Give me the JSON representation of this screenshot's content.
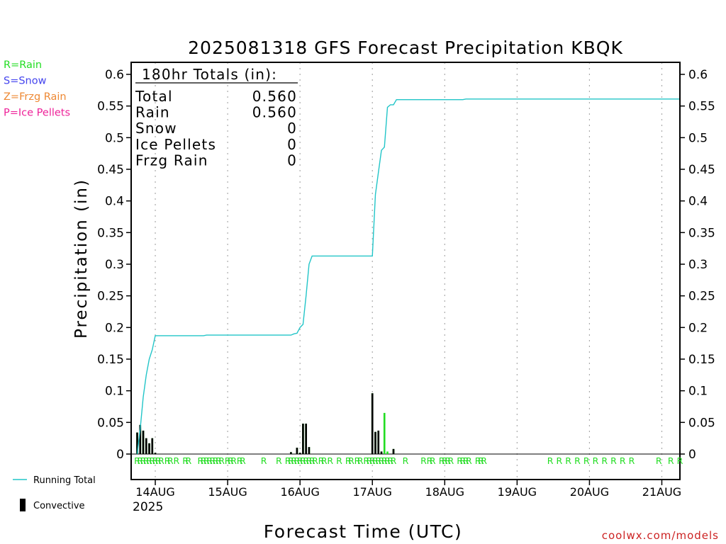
{
  "title": "2025081318 GFS Forecast Precipitation KBQK",
  "legend_ptype": [
    {
      "text": "R=Rain",
      "color": "#22dd22"
    },
    {
      "text": "S=Snow",
      "color": "#4444ee"
    },
    {
      "text": "Z=Frzg Rain",
      "color": "#ee8833"
    },
    {
      "text": "P=Ice Pellets",
      "color": "#ee2299"
    }
  ],
  "legend_lines": {
    "running_total": "Running Total",
    "convective": "Convective"
  },
  "totals_box": {
    "header": "180hr Totals (in):",
    "rows": [
      {
        "label": "Total",
        "value": "0.560"
      },
      {
        "label": "Rain",
        "value": "0.560"
      },
      {
        "label": "Snow",
        "value": "0"
      },
      {
        "label": "Ice Pellets",
        "value": "0"
      },
      {
        "label": "Frzg Rain",
        "value": "0"
      }
    ]
  },
  "credit": "coolwx.com/models",
  "colors": {
    "running_total": "#22c5c8",
    "convective": "#000000",
    "rain": "#22dd22",
    "credit": "#cc2222",
    "grid": "#aaaaaa"
  },
  "chart_data": {
    "type": "bar",
    "title": "2025081318 GFS Forecast Precipitation KBQK",
    "xlabel": "Forecast Time (UTC)",
    "ylabel": "Precipitation (in)",
    "ylim": [
      0,
      0.6
    ],
    "y_ticks": [
      "0",
      "0.05",
      "0.1",
      "0.15",
      "0.2",
      "0.25",
      "0.3",
      "0.35",
      "0.4",
      "0.45",
      "0.5",
      "0.55",
      "0.6"
    ],
    "x_unit": "forecast hour",
    "xlim": [
      -2,
      180
    ],
    "x_ticks": [
      {
        "hour": 6,
        "label": "14AUG"
      },
      {
        "hour": 30,
        "label": "15AUG"
      },
      {
        "hour": 54,
        "label": "16AUG"
      },
      {
        "hour": 78,
        "label": "17AUG"
      },
      {
        "hour": 102,
        "label": "18AUG"
      },
      {
        "hour": 126,
        "label": "19AUG"
      },
      {
        "hour": 150,
        "label": "20AUG"
      },
      {
        "hour": 174,
        "label": "21AUG"
      }
    ],
    "year_label": "2025",
    "bars": [
      {
        "hour": 0,
        "total": 0.034,
        "conv": 0.034
      },
      {
        "hour": 1,
        "total": 0.046,
        "conv": 0.046
      },
      {
        "hour": 2,
        "total": 0.037,
        "conv": 0.037
      },
      {
        "hour": 3,
        "total": 0.025,
        "conv": 0.025
      },
      {
        "hour": 4,
        "total": 0.017,
        "conv": 0.017
      },
      {
        "hour": 5,
        "total": 0.025,
        "conv": 0.025
      },
      {
        "hour": 6,
        "total": 0.002,
        "conv": 0.002
      },
      {
        "hour": 51,
        "total": 0.003,
        "conv": 0.003
      },
      {
        "hour": 53,
        "total": 0.01,
        "conv": 0.01
      },
      {
        "hour": 54,
        "total": 0.002,
        "conv": 0.002
      },
      {
        "hour": 55,
        "total": 0.048,
        "conv": 0.048
      },
      {
        "hour": 56,
        "total": 0.048,
        "conv": 0.048
      },
      {
        "hour": 57,
        "total": 0.011,
        "conv": 0.011
      },
      {
        "hour": 78,
        "total": 0.096,
        "conv": 0.096
      },
      {
        "hour": 79,
        "total": 0.035,
        "conv": 0.035
      },
      {
        "hour": 80,
        "total": 0.037,
        "conv": 0.037
      },
      {
        "hour": 81,
        "total": 0.004,
        "conv": 0.004
      },
      {
        "hour": 82,
        "total": 0.065,
        "conv": 0.0
      },
      {
        "hour": 83,
        "total": 0.004,
        "conv": 0.0
      },
      {
        "hour": 85,
        "total": 0.008,
        "conv": 0.008
      }
    ],
    "running_total": [
      {
        "hour": 0,
        "value": 0.0
      },
      {
        "hour": 1,
        "value": 0.04
      },
      {
        "hour": 2,
        "value": 0.09
      },
      {
        "hour": 3,
        "value": 0.125
      },
      {
        "hour": 4,
        "value": 0.15
      },
      {
        "hour": 5,
        "value": 0.165
      },
      {
        "hour": 6,
        "value": 0.187
      },
      {
        "hour": 12,
        "value": 0.187
      },
      {
        "hour": 22,
        "value": 0.187
      },
      {
        "hour": 23,
        "value": 0.188
      },
      {
        "hour": 51,
        "value": 0.188
      },
      {
        "hour": 52,
        "value": 0.19
      },
      {
        "hour": 53,
        "value": 0.191
      },
      {
        "hour": 54,
        "value": 0.2
      },
      {
        "hour": 55,
        "value": 0.205
      },
      {
        "hour": 56,
        "value": 0.25
      },
      {
        "hour": 57,
        "value": 0.3
      },
      {
        "hour": 58,
        "value": 0.313
      },
      {
        "hour": 78,
        "value": 0.313
      },
      {
        "hour": 79,
        "value": 0.41
      },
      {
        "hour": 80,
        "value": 0.445
      },
      {
        "hour": 81,
        "value": 0.48
      },
      {
        "hour": 82,
        "value": 0.485
      },
      {
        "hour": 83,
        "value": 0.548
      },
      {
        "hour": 84,
        "value": 0.552
      },
      {
        "hour": 85,
        "value": 0.552
      },
      {
        "hour": 86,
        "value": 0.56
      },
      {
        "hour": 108,
        "value": 0.56
      },
      {
        "hour": 109,
        "value": 0.561
      },
      {
        "hour": 180,
        "value": 0.561
      }
    ],
    "ptype_row": [
      {
        "hour": 0,
        "ptype": "R"
      },
      {
        "hour": 1,
        "ptype": "R"
      },
      {
        "hour": 2,
        "ptype": "R"
      },
      {
        "hour": 3,
        "ptype": "R"
      },
      {
        "hour": 4,
        "ptype": "R"
      },
      {
        "hour": 5,
        "ptype": "R"
      },
      {
        "hour": 6,
        "ptype": "R"
      },
      {
        "hour": 7,
        "ptype": "R"
      },
      {
        "hour": 8,
        "ptype": "R"
      },
      {
        "hour": 10,
        "ptype": "R"
      },
      {
        "hour": 11,
        "ptype": "R"
      },
      {
        "hour": 13,
        "ptype": "R"
      },
      {
        "hour": 16,
        "ptype": "R"
      },
      {
        "hour": 17,
        "ptype": "R"
      },
      {
        "hour": 21,
        "ptype": "R"
      },
      {
        "hour": 22,
        "ptype": "R"
      },
      {
        "hour": 23,
        "ptype": "R"
      },
      {
        "hour": 24,
        "ptype": "R"
      },
      {
        "hour": 25,
        "ptype": "R"
      },
      {
        "hour": 26,
        "ptype": "R"
      },
      {
        "hour": 27,
        "ptype": "R"
      },
      {
        "hour": 28,
        "ptype": "R"
      },
      {
        "hour": 30,
        "ptype": "R"
      },
      {
        "hour": 31,
        "ptype": "R"
      },
      {
        "hour": 32,
        "ptype": "R"
      },
      {
        "hour": 34,
        "ptype": "R"
      },
      {
        "hour": 35,
        "ptype": "R"
      },
      {
        "hour": 42,
        "ptype": "R"
      },
      {
        "hour": 47,
        "ptype": "R"
      },
      {
        "hour": 50,
        "ptype": "R"
      },
      {
        "hour": 51,
        "ptype": "R"
      },
      {
        "hour": 52,
        "ptype": "R"
      },
      {
        "hour": 53,
        "ptype": "R"
      },
      {
        "hour": 54,
        "ptype": "R"
      },
      {
        "hour": 55,
        "ptype": "R"
      },
      {
        "hour": 56,
        "ptype": "R"
      },
      {
        "hour": 57,
        "ptype": "R"
      },
      {
        "hour": 58,
        "ptype": "R"
      },
      {
        "hour": 59,
        "ptype": "R"
      },
      {
        "hour": 61,
        "ptype": "R"
      },
      {
        "hour": 62,
        "ptype": "R"
      },
      {
        "hour": 64,
        "ptype": "R"
      },
      {
        "hour": 67,
        "ptype": "R"
      },
      {
        "hour": 70,
        "ptype": "R"
      },
      {
        "hour": 71,
        "ptype": "R"
      },
      {
        "hour": 73,
        "ptype": "R"
      },
      {
        "hour": 74,
        "ptype": "R"
      },
      {
        "hour": 76,
        "ptype": "R"
      },
      {
        "hour": 77,
        "ptype": "R"
      },
      {
        "hour": 78,
        "ptype": "R"
      },
      {
        "hour": 79,
        "ptype": "R"
      },
      {
        "hour": 80,
        "ptype": "R"
      },
      {
        "hour": 81,
        "ptype": "R"
      },
      {
        "hour": 82,
        "ptype": "R"
      },
      {
        "hour": 83,
        "ptype": "R"
      },
      {
        "hour": 84,
        "ptype": "R"
      },
      {
        "hour": 85,
        "ptype": "R"
      },
      {
        "hour": 89,
        "ptype": "R"
      },
      {
        "hour": 95,
        "ptype": "R"
      },
      {
        "hour": 97,
        "ptype": "R"
      },
      {
        "hour": 98,
        "ptype": "R"
      },
      {
        "hour": 101,
        "ptype": "R"
      },
      {
        "hour": 102,
        "ptype": "R"
      },
      {
        "hour": 103,
        "ptype": "R"
      },
      {
        "hour": 104,
        "ptype": "R"
      },
      {
        "hour": 107,
        "ptype": "R"
      },
      {
        "hour": 108,
        "ptype": "R"
      },
      {
        "hour": 109,
        "ptype": "R"
      },
      {
        "hour": 110,
        "ptype": "R"
      },
      {
        "hour": 113,
        "ptype": "R"
      },
      {
        "hour": 114,
        "ptype": "R"
      },
      {
        "hour": 115,
        "ptype": "R"
      },
      {
        "hour": 137,
        "ptype": "R"
      },
      {
        "hour": 140,
        "ptype": "R"
      },
      {
        "hour": 143,
        "ptype": "R"
      },
      {
        "hour": 146,
        "ptype": "R"
      },
      {
        "hour": 149,
        "ptype": "R"
      },
      {
        "hour": 152,
        "ptype": "R"
      },
      {
        "hour": 155,
        "ptype": "R"
      },
      {
        "hour": 158,
        "ptype": "R"
      },
      {
        "hour": 161,
        "ptype": "R"
      },
      {
        "hour": 164,
        "ptype": "R"
      },
      {
        "hour": 173,
        "ptype": "R"
      },
      {
        "hour": 177,
        "ptype": "R"
      },
      {
        "hour": 180,
        "ptype": "R"
      }
    ]
  }
}
